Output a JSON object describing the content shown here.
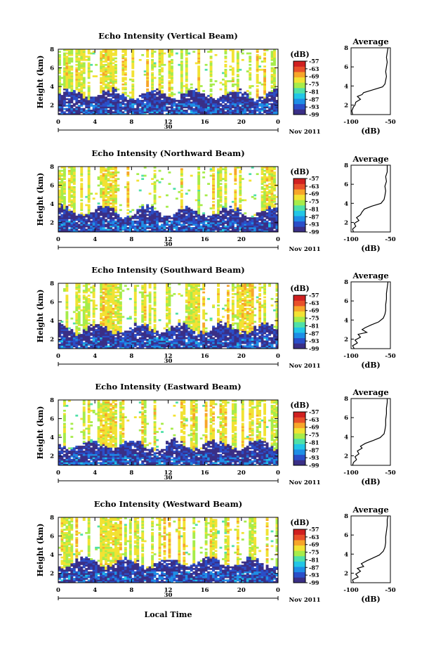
{
  "chart_data": {
    "type": "heatmap",
    "shared": {
      "ylabel": "Height (km)",
      "y_ticks": [
        "2",
        "4",
        "6",
        "8"
      ],
      "ylim": [
        1,
        8
      ],
      "x_ticks": [
        "0",
        "4",
        "8",
        "12",
        "16",
        "20",
        "0"
      ],
      "xlim_hours": [
        0,
        24
      ],
      "date_day": "30",
      "date_month": "Nov 2011",
      "xlabel": "Local Time",
      "colorbar_unit": "(dB)",
      "colorbar_ticks": [
        "-57",
        "-63",
        "-69",
        "-75",
        "-81",
        "-87",
        "-93",
        "-99"
      ],
      "colorbar_range": [
        -99,
        -57
      ],
      "colorscale": [
        "#3a2f86",
        "#2a4ec8",
        "#1e8ee6",
        "#22c6e6",
        "#4fe0a8",
        "#a6ec4a",
        "#f2e233",
        "#f7a52a",
        "#e8502a",
        "#d02020"
      ],
      "avg_title": "Average",
      "avg_xlabel": "(dB)",
      "avg_x_ticks": [
        "-100",
        "-50"
      ],
      "avg_xlim": [
        -100,
        -50
      ],
      "avg_y_ticks": [
        "2",
        "4",
        "6",
        "8"
      ]
    },
    "panels": [
      {
        "title": "Echo Intensity (Vertical Beam)",
        "avg_profile": [
          [
            1.0,
            -98
          ],
          [
            1.4,
            -99
          ],
          [
            1.8,
            -97
          ],
          [
            2.0,
            -95
          ],
          [
            2.3,
            -94
          ],
          [
            2.6,
            -88
          ],
          [
            2.9,
            -92
          ],
          [
            3.1,
            -86
          ],
          [
            3.3,
            -84
          ],
          [
            3.6,
            -72
          ],
          [
            3.9,
            -60
          ],
          [
            4.2,
            -57
          ],
          [
            4.6,
            -56
          ],
          [
            5.0,
            -55
          ],
          [
            5.5,
            -56
          ],
          [
            6.0,
            -55
          ],
          [
            6.5,
            -54
          ],
          [
            7.0,
            -55
          ],
          [
            7.5,
            -54
          ],
          [
            8.0,
            -53
          ]
        ]
      },
      {
        "title": "Echo Intensity (Northward Beam)",
        "avg_profile": [
          [
            1.0,
            -97
          ],
          [
            1.3,
            -98
          ],
          [
            1.6,
            -94
          ],
          [
            1.9,
            -96
          ],
          [
            2.2,
            -90
          ],
          [
            2.5,
            -93
          ],
          [
            2.8,
            -88
          ],
          [
            3.1,
            -86
          ],
          [
            3.4,
            -83
          ],
          [
            3.7,
            -74
          ],
          [
            4.0,
            -62
          ],
          [
            4.4,
            -58
          ],
          [
            4.8,
            -57
          ],
          [
            5.3,
            -56
          ],
          [
            5.8,
            -57
          ],
          [
            6.3,
            -55
          ],
          [
            6.8,
            -56
          ],
          [
            7.3,
            -54
          ],
          [
            8.0,
            -54
          ]
        ]
      },
      {
        "title": "Echo Intensity (Southward Beam)",
        "avg_profile": [
          [
            1.0,
            -96
          ],
          [
            1.3,
            -98
          ],
          [
            1.6,
            -92
          ],
          [
            1.9,
            -95
          ],
          [
            2.2,
            -88
          ],
          [
            2.5,
            -91
          ],
          [
            2.7,
            -80
          ],
          [
            3.0,
            -86
          ],
          [
            3.2,
            -82
          ],
          [
            3.5,
            -74
          ],
          [
            3.8,
            -65
          ],
          [
            4.2,
            -59
          ],
          [
            4.6,
            -57
          ],
          [
            5.0,
            -56
          ],
          [
            5.6,
            -56
          ],
          [
            6.2,
            -55
          ],
          [
            6.8,
            -55
          ],
          [
            7.4,
            -54
          ],
          [
            8.0,
            -53
          ]
        ]
      },
      {
        "title": "Echo Intensity (Eastward Beam)",
        "avg_profile": [
          [
            1.0,
            -98
          ],
          [
            1.3,
            -97
          ],
          [
            1.6,
            -93
          ],
          [
            1.9,
            -95
          ],
          [
            2.2,
            -90
          ],
          [
            2.5,
            -92
          ],
          [
            2.8,
            -86
          ],
          [
            3.0,
            -88
          ],
          [
            3.3,
            -82
          ],
          [
            3.6,
            -72
          ],
          [
            3.9,
            -63
          ],
          [
            4.3,
            -58
          ],
          [
            4.7,
            -57
          ],
          [
            5.2,
            -56
          ],
          [
            5.8,
            -56
          ],
          [
            6.4,
            -55
          ],
          [
            7.0,
            -55
          ],
          [
            7.6,
            -54
          ],
          [
            8.0,
            -54
          ]
        ]
      },
      {
        "title": "Echo Intensity (Westward Beam)",
        "avg_profile": [
          [
            1.0,
            -97
          ],
          [
            1.3,
            -98
          ],
          [
            1.6,
            -91
          ],
          [
            1.9,
            -94
          ],
          [
            2.2,
            -88
          ],
          [
            2.5,
            -92
          ],
          [
            2.7,
            -84
          ],
          [
            3.0,
            -87
          ],
          [
            3.3,
            -80
          ],
          [
            3.6,
            -72
          ],
          [
            3.9,
            -64
          ],
          [
            4.3,
            -59
          ],
          [
            4.7,
            -57
          ],
          [
            5.2,
            -56
          ],
          [
            5.8,
            -56
          ],
          [
            6.4,
            -55
          ],
          [
            7.0,
            -54
          ],
          [
            7.6,
            -54
          ],
          [
            8.0,
            -53
          ]
        ]
      }
    ]
  }
}
